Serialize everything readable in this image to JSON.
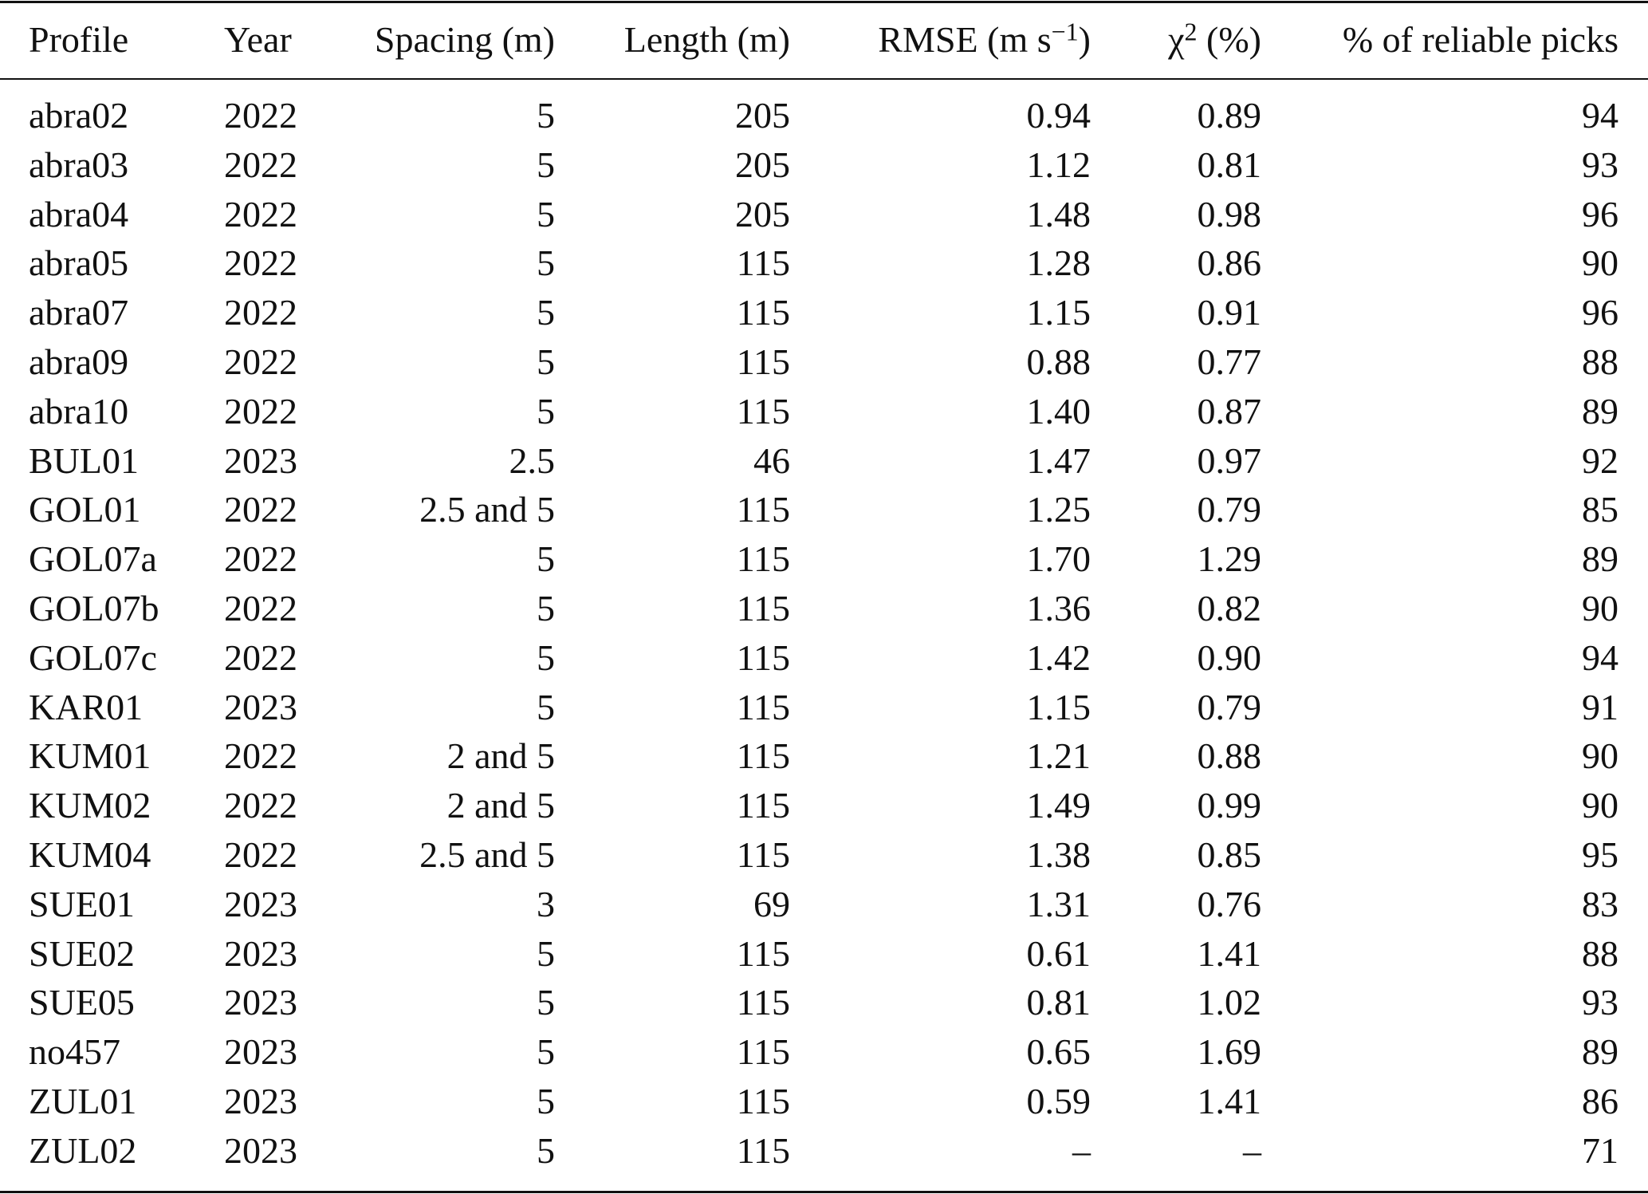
{
  "table": {
    "header": [
      "Profile",
      "Year",
      "Spacing (m)",
      "Length (m)",
      {
        "text": "RMSE (m s",
        "sup": "−1",
        "after": ")"
      },
      {
        "text": "χ",
        "sup": "2",
        "after": " (%)"
      },
      "% of reliable picks"
    ],
    "rows": [
      [
        "abra02",
        "2022",
        "5",
        "205",
        "0.94",
        "0.89",
        "94"
      ],
      [
        "abra03",
        "2022",
        "5",
        "205",
        "1.12",
        "0.81",
        "93"
      ],
      [
        "abra04",
        "2022",
        "5",
        "205",
        "1.48",
        "0.98",
        "96"
      ],
      [
        "abra05",
        "2022",
        "5",
        "115",
        "1.28",
        "0.86",
        "90"
      ],
      [
        "abra07",
        "2022",
        "5",
        "115",
        "1.15",
        "0.91",
        "96"
      ],
      [
        "abra09",
        "2022",
        "5",
        "115",
        "0.88",
        "0.77",
        "88"
      ],
      [
        "abra10",
        "2022",
        "5",
        "115",
        "1.40",
        "0.87",
        "89"
      ],
      [
        "BUL01",
        "2023",
        "2.5",
        "46",
        "1.47",
        "0.97",
        "92"
      ],
      [
        "GOL01",
        "2022",
        "2.5 and 5",
        "115",
        "1.25",
        "0.79",
        "85"
      ],
      [
        "GOL07a",
        "2022",
        "5",
        "115",
        "1.70",
        "1.29",
        "89"
      ],
      [
        "GOL07b",
        "2022",
        "5",
        "115",
        "1.36",
        "0.82",
        "90"
      ],
      [
        "GOL07c",
        "2022",
        "5",
        "115",
        "1.42",
        "0.90",
        "94"
      ],
      [
        "KAR01",
        "2023",
        "5",
        "115",
        "1.15",
        "0.79",
        "91"
      ],
      [
        "KUM01",
        "2022",
        "2 and 5",
        "115",
        "1.21",
        "0.88",
        "90"
      ],
      [
        "KUM02",
        "2022",
        "2 and 5",
        "115",
        "1.49",
        "0.99",
        "90"
      ],
      [
        "KUM04",
        "2022",
        "2.5 and 5",
        "115",
        "1.38",
        "0.85",
        "95"
      ],
      [
        "SUE01",
        "2023",
        "3",
        "69",
        "1.31",
        "0.76",
        "83"
      ],
      [
        "SUE02",
        "2023",
        "5",
        "115",
        "0.61",
        "1.41",
        "88"
      ],
      [
        "SUE05",
        "2023",
        "5",
        "115",
        "0.81",
        "1.02",
        "93"
      ],
      [
        "no457",
        "2023",
        "5",
        "115",
        "0.65",
        "1.69",
        "89"
      ],
      [
        "ZUL01",
        "2023",
        "5",
        "115",
        "0.59",
        "1.41",
        "86"
      ],
      [
        "ZUL02",
        "2023",
        "5",
        "115",
        "–",
        "–",
        "71"
      ]
    ]
  }
}
